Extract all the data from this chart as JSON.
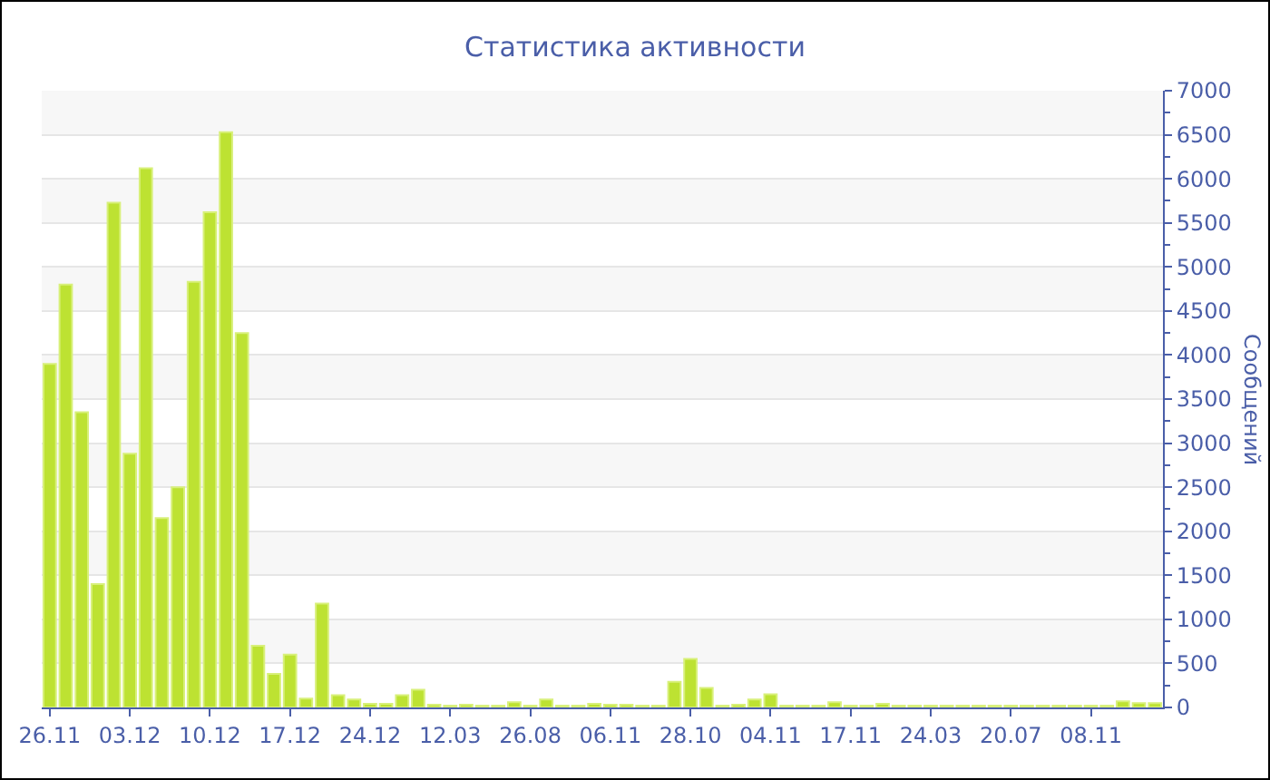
{
  "chart_data": {
    "type": "bar",
    "title": "Статистика активности",
    "ylabel": "Сообщений",
    "categories": [
      "26.11",
      null,
      null,
      null,
      null,
      "03.12",
      null,
      null,
      null,
      null,
      "10.12",
      null,
      null,
      null,
      null,
      "17.12",
      null,
      null,
      null,
      null,
      "24.12",
      null,
      null,
      null,
      null,
      "12.03",
      null,
      null,
      null,
      null,
      "26.08",
      null,
      null,
      null,
      null,
      "06.11",
      null,
      null,
      null,
      null,
      "28.10",
      null,
      null,
      null,
      null,
      "04.11",
      null,
      null,
      null,
      null,
      "17.11",
      null,
      null,
      null,
      null,
      "24.03",
      null,
      null,
      null,
      null,
      "20.07",
      null,
      null,
      null,
      null,
      "08.11",
      null,
      null,
      null,
      null
    ],
    "values": [
      3900,
      4800,
      3350,
      1400,
      5730,
      2880,
      6120,
      2150,
      2500,
      4830,
      5620,
      6530,
      4250,
      700,
      380,
      600,
      100,
      1180,
      140,
      90,
      40,
      40,
      140,
      200,
      30,
      20,
      30,
      20,
      20,
      60,
      20,
      90,
      20,
      20,
      40,
      30,
      30,
      20,
      20,
      290,
      550,
      220,
      20,
      30,
      90,
      150,
      20,
      20,
      20,
      60,
      20,
      20,
      40,
      20,
      20,
      20,
      20,
      20,
      20,
      20,
      20,
      20,
      20,
      20,
      20,
      20,
      20,
      70,
      50,
      50
    ],
    "color": "#bde232",
    "ylim": [
      0,
      7000
    ],
    "yticks": [
      0,
      500,
      1000,
      1500,
      2000,
      2500,
      3000,
      3500,
      4000,
      4500,
      5000,
      5500,
      6000,
      6500,
      7000
    ],
    "grid": true
  }
}
